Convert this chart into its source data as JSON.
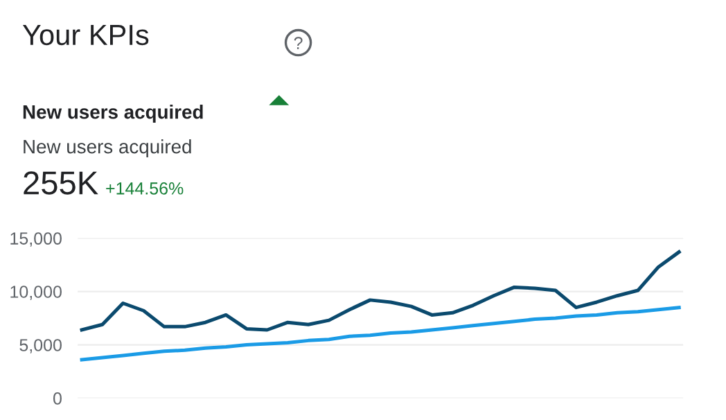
{
  "chart_data": {
    "type": "line",
    "title": "Your KPIs",
    "annotations": [
      "New users acquired",
      "New users acquired",
      "255K",
      "+144.56%"
    ],
    "categories": [
      null,
      null,
      null,
      null,
      null,
      null,
      null,
      null,
      null,
      null,
      null,
      null,
      null,
      null,
      null,
      null,
      null,
      null,
      null,
      null,
      null,
      null,
      null,
      null,
      null,
      null,
      null,
      null,
      null,
      null
    ],
    "series": [
      {
        "color": "#0b4a6e",
        "values": [
          6400,
          6900,
          8900,
          8200,
          6700,
          6700,
          7100,
          7800,
          6500,
          6400,
          7100,
          6900,
          7300,
          8300,
          9200,
          9000,
          8600,
          7800,
          8000,
          8700,
          9600,
          10400,
          10300,
          10100,
          8500,
          9000,
          9600,
          10100,
          12300,
          13700
        ]
      },
      {
        "color": "#1a9be6",
        "values": [
          3600,
          3800,
          4000,
          4200,
          4400,
          4500,
          4700,
          4800,
          5000,
          5100,
          5200,
          5400,
          5500,
          5800,
          5900,
          6100,
          6200,
          6400,
          6600,
          6800,
          7000,
          7200,
          7400,
          7500,
          7700,
          7800,
          8000,
          8100,
          8300,
          8500
        ]
      }
    ],
    "ylim": [
      0,
      15000
    ],
    "yticks": [
      {
        "value": 0,
        "label": "0"
      },
      {
        "value": 5000,
        "label": "5,000"
      },
      {
        "value": 10000,
        "label": "10,000"
      },
      {
        "value": 15000,
        "label": "15,000"
      }
    ],
    "grid": "y",
    "marker": "none",
    "line_style": "solid",
    "legend": false
  }
}
